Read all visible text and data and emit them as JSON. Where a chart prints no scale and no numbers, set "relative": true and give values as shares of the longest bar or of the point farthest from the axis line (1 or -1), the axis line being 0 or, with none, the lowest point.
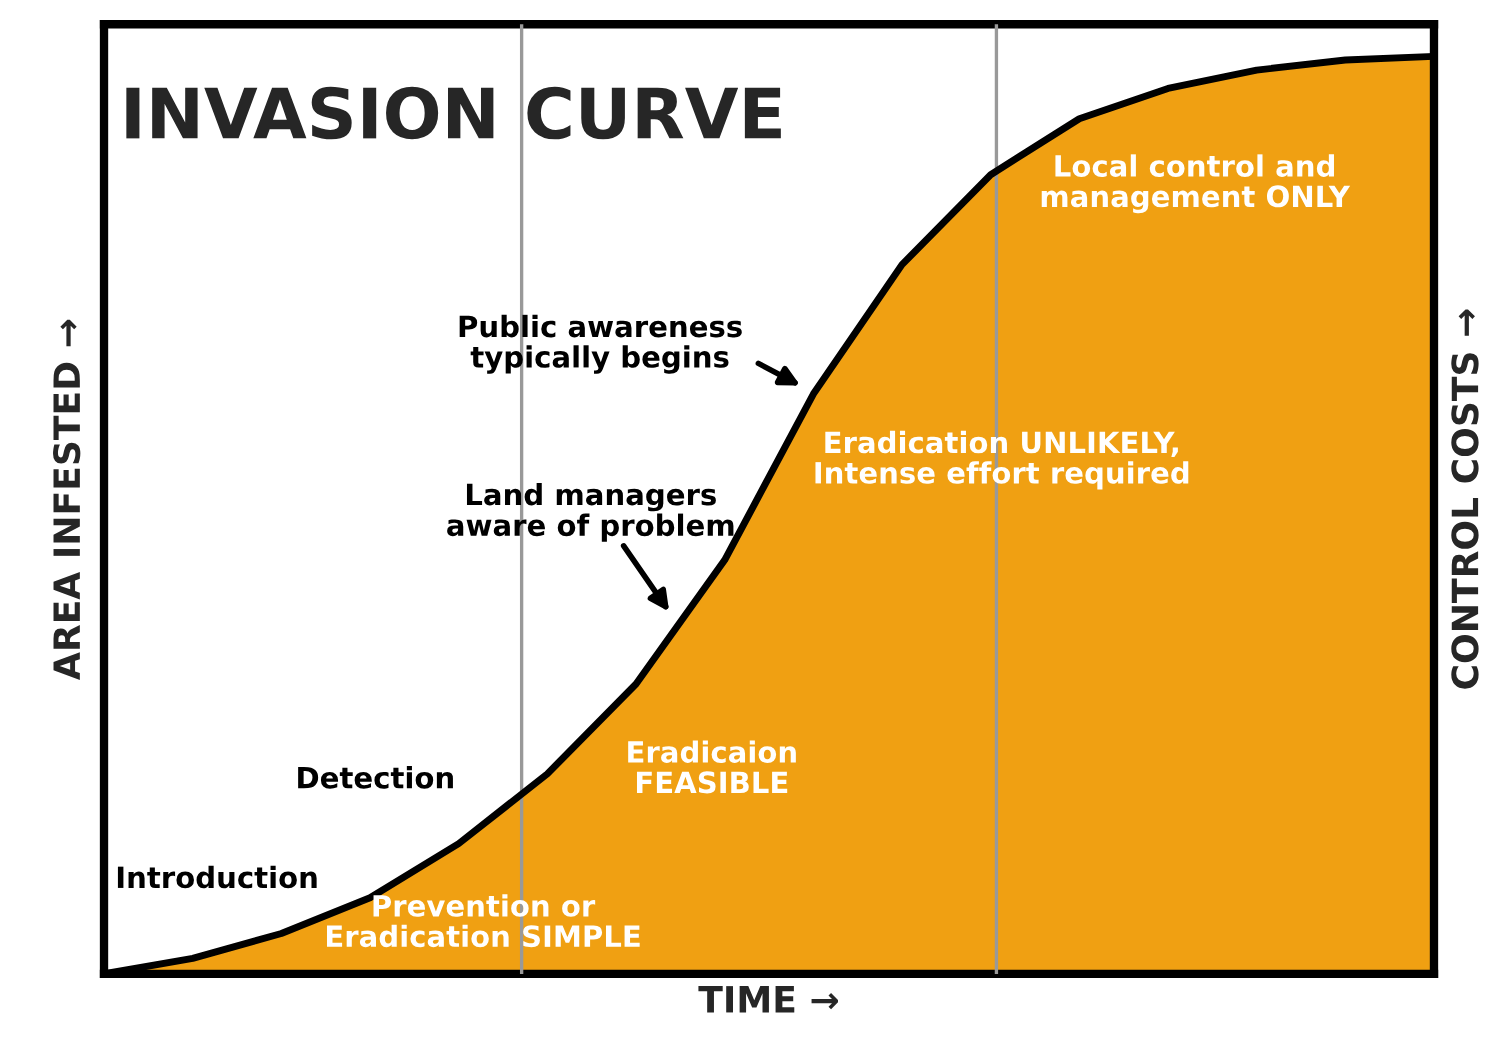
{
  "chart_data": {
    "type": "area",
    "title": "INVASION CURVE",
    "xlabel": "TIME →",
    "ylabel": "AREA INFESTED →",
    "y2label": "CONTROL COSTS →",
    "relative": true,
    "tick_labels": false,
    "categories": [
      null,
      null,
      null,
      null,
      null,
      null,
      null,
      null,
      null,
      null,
      null,
      null,
      null,
      null,
      null,
      null
    ],
    "series": [
      {
        "color": "#f0a012",
        "values": [
          0,
          0.017,
          0.044,
          0.083,
          0.142,
          0.218,
          0.316,
          0.451,
          0.632,
          0.773,
          0.871,
          0.932,
          0.965,
          0.985,
          0.996,
          1
        ]
      }
    ],
    "annotations": [
      "Introduction",
      "Detection",
      "Public awareness\ntypically begins",
      "Land managers\naware of problem",
      "Prevention or\nEradication SIMPLE",
      "Eradicaion\nFEASIBLE",
      "Eradication UNLIKELY,\nIntense effort required",
      "Local control and\nmanagement ONLY"
    ]
  }
}
